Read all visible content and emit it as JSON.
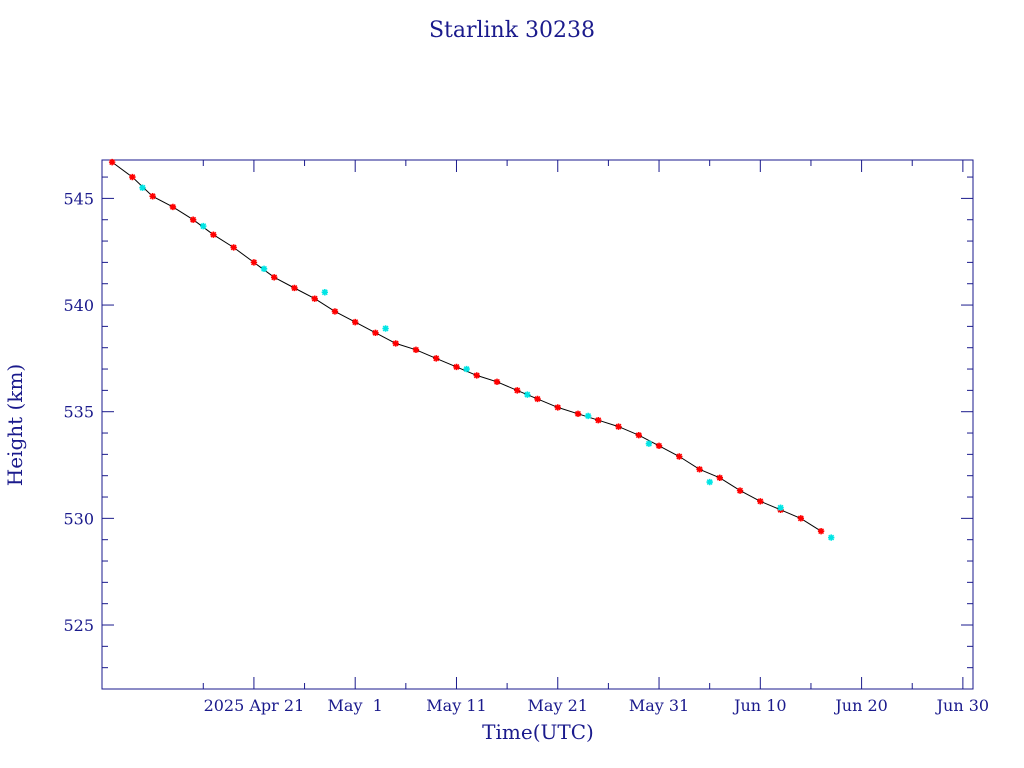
{
  "chart_data": {
    "type": "scatter",
    "title": "Starlink 30238",
    "xlabel": "Time(UTC)",
    "ylabel": "Height (km)",
    "xlim": [
      "2025-04-06",
      "2025-07-01"
    ],
    "ylim": [
      522,
      546.8
    ],
    "x_tick_labels": [
      "2025 Apr 21",
      "May  1",
      "May 11",
      "May 21",
      "May 31",
      "Jun 10",
      "Jun 20",
      "Jun 30"
    ],
    "x_tick_dates": [
      "2025-04-21",
      "2025-05-01",
      "2025-05-11",
      "2025-05-21",
      "2025-05-31",
      "2025-06-10",
      "2025-06-20",
      "2025-06-30"
    ],
    "y_ticks": [
      525,
      530,
      535,
      540,
      545
    ],
    "grid": false,
    "colors": {
      "axes": "#1a1a8c",
      "line": "#000000",
      "primary_markers": "#ff0000",
      "secondary_markers": "#00e5e5"
    },
    "series": [
      {
        "marker": "red-star",
        "color": "#ff0000",
        "x": [
          "2025-04-07",
          "2025-04-09",
          "2025-04-11",
          "2025-04-13",
          "2025-04-15",
          "2025-04-17",
          "2025-04-19",
          "2025-04-21",
          "2025-04-23",
          "2025-04-25",
          "2025-04-27",
          "2025-04-29",
          "2025-05-01",
          "2025-05-03",
          "2025-05-05",
          "2025-05-07",
          "2025-05-09",
          "2025-05-11",
          "2025-05-13",
          "2025-05-15",
          "2025-05-17",
          "2025-05-19",
          "2025-05-21",
          "2025-05-23",
          "2025-05-25",
          "2025-05-27",
          "2025-05-29",
          "2025-05-31",
          "2025-06-02",
          "2025-06-04",
          "2025-06-06",
          "2025-06-08",
          "2025-06-10",
          "2025-06-12",
          "2025-06-14",
          "2025-06-16"
        ],
        "y": [
          546.7,
          546.0,
          545.1,
          544.6,
          544.0,
          543.3,
          542.7,
          542.0,
          541.3,
          540.8,
          540.3,
          539.7,
          539.2,
          538.7,
          538.2,
          537.9,
          537.5,
          537.1,
          536.7,
          536.4,
          536.0,
          535.6,
          535.2,
          534.9,
          534.6,
          534.3,
          533.9,
          533.4,
          532.9,
          532.3,
          531.9,
          531.3,
          530.8,
          530.4,
          530.0,
          529.4
        ]
      },
      {
        "marker": "cyan-star",
        "color": "#00e5e5",
        "x": [
          "2025-04-10",
          "2025-04-16",
          "2025-04-22",
          "2025-04-28",
          "2025-05-04",
          "2025-05-12",
          "2025-05-18",
          "2025-05-24",
          "2025-05-30",
          "2025-06-05",
          "2025-06-12",
          "2025-06-17"
        ],
        "y": [
          545.5,
          543.7,
          541.7,
          540.6,
          538.9,
          537.0,
          535.8,
          534.8,
          533.5,
          531.7,
          530.5,
          529.1
        ]
      }
    ]
  }
}
